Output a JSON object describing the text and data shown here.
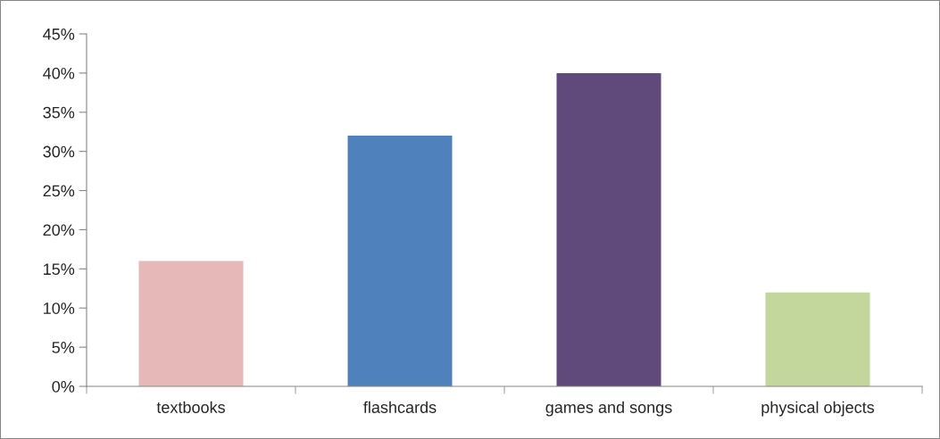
{
  "chart_data": {
    "type": "bar",
    "categories": [
      "textbooks",
      "flashcards",
      "games and songs",
      "physical objects"
    ],
    "values": [
      16,
      32,
      40,
      12
    ],
    "colors": [
      "#e6b9b8",
      "#4f81bd",
      "#604a7b",
      "#c3d69b"
    ],
    "ylim": [
      0,
      45
    ],
    "yticks": [
      {
        "value": 0,
        "label": "0%"
      },
      {
        "value": 5,
        "label": "5%"
      },
      {
        "value": 10,
        "label": "10%"
      },
      {
        "value": 15,
        "label": "15%"
      },
      {
        "value": 20,
        "label": "20%"
      },
      {
        "value": 25,
        "label": "25%"
      },
      {
        "value": 30,
        "label": "30%"
      },
      {
        "value": 35,
        "label": "35%"
      },
      {
        "value": 40,
        "label": "40%"
      },
      {
        "value": 45,
        "label": "45%"
      }
    ],
    "grid": false,
    "legend": false
  }
}
